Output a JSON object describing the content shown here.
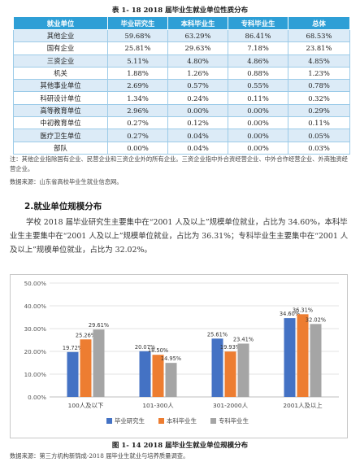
{
  "table": {
    "caption": "表 1- 18   2018 届毕业生就业单位性质分布",
    "headers": [
      "就业单位",
      "毕业研究生",
      "本科毕业生",
      "专科毕业生",
      "总体"
    ],
    "rows": [
      [
        "其他企业",
        "59.68%",
        "63.29%",
        "86.41%",
        "68.53%"
      ],
      [
        "国有企业",
        "25.81%",
        "29.63%",
        "7.18%",
        "23.81%"
      ],
      [
        "三资企业",
        "5.11%",
        "4.80%",
        "4.86%",
        "4.85%"
      ],
      [
        "机关",
        "1.88%",
        "1.26%",
        "0.88%",
        "1.23%"
      ],
      [
        "其他事业单位",
        "2.69%",
        "0.57%",
        "0.55%",
        "0.78%"
      ],
      [
        "科研设计单位",
        "1.34%",
        "0.24%",
        "0.11%",
        "0.32%"
      ],
      [
        "高等教育单位",
        "2.96%",
        "0.00%",
        "0.00%",
        "0.29%"
      ],
      [
        "中初教育单位",
        "0.27%",
        "0.12%",
        "0.00%",
        "0.11%"
      ],
      [
        "医疗卫生单位",
        "0.27%",
        "0.04%",
        "0.00%",
        "0.05%"
      ],
      [
        "部队",
        "0.00%",
        "0.04%",
        "0.00%",
        "0.03%"
      ]
    ]
  },
  "note": "注：其他企业指除国有企业、民营企业和三资企业外的所有企业。三资企业指中外合资经营企业、中外合作经营企业、外商独资经营企业。",
  "source1": "数据来源：山东省高校毕业生就业信息网。",
  "section_title": "2.就业单位规模分布",
  "paragraph": "学校 2018 届毕业研究生主要集中在“2001 人及以上”规模单位就业，占比为 34.60%，本科毕业生主要集中在“2001 人及以上”规模单位就业，占比为 36.31%；专科毕业生主要集中在“2001 人及以上”规模单位就业，占比为 32.02%。",
  "figure_caption": "图 1- 14   2018 届毕业生就业单位规模分布",
  "source2": "数据来源：第三方机构新锦成-2018 届毕业生就业与培养质量调查。",
  "colors": {
    "grad": "#4472c4",
    "undergrad": "#ed7d31",
    "junior": "#a5a5a5",
    "header_bg": "#2e9fd6"
  },
  "chart_data": {
    "type": "bar",
    "categories": [
      "100人及以下",
      "101-300人",
      "301-2000人",
      "2001人及以上"
    ],
    "series": [
      {
        "name": "毕业研究生",
        "values": [
          19.72,
          20.07,
          25.61,
          34.6
        ],
        "labels": [
          "19.72%",
          "20.07%",
          "25.61%",
          "34.60%"
        ]
      },
      {
        "name": "本科毕业生",
        "values": [
          25.26,
          18.5,
          19.93,
          36.31
        ],
        "labels": [
          "25.26%",
          "18.50%",
          "19.93%",
          "36.31%"
        ]
      },
      {
        "name": "专科毕业生",
        "values": [
          29.61,
          14.95,
          23.41,
          32.02
        ],
        "labels": [
          "29.61%",
          "14.95%",
          "23.41%",
          "32.02%"
        ]
      }
    ],
    "ylim": [
      0,
      50
    ],
    "yticks": [
      "0.00%",
      "10.00%",
      "20.00%",
      "30.00%",
      "40.00%",
      "50.00%"
    ],
    "grid": true,
    "legend": "bottom"
  }
}
